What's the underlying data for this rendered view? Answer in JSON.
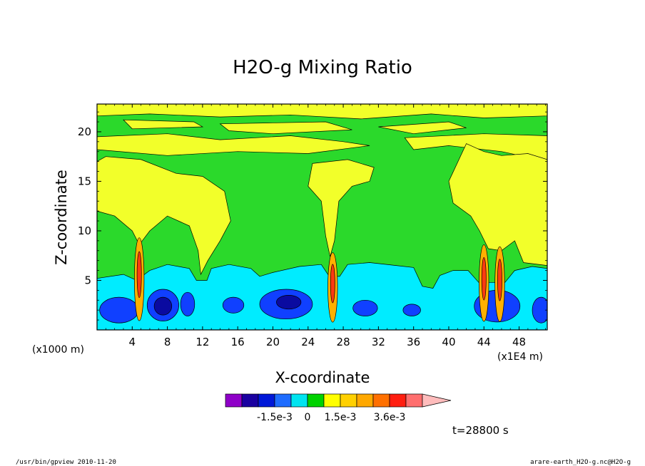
{
  "chart_data": {
    "type": "heatmap",
    "title": "H2O-g Mixing Ratio",
    "xlabel": "X-coordinate",
    "ylabel": "Z-coordinate",
    "x_unit_left": "(x1000 m)",
    "x_unit_right": "(x1E4 m)",
    "x_ticks": [
      "4",
      "8",
      "12",
      "16",
      "20",
      "24",
      "28",
      "32",
      "36",
      "40",
      "44",
      "48"
    ],
    "y_ticks": [
      "5",
      "10",
      "15",
      "20"
    ],
    "xlim": [
      0,
      51.2
    ],
    "ylim": [
      0,
      22.8
    ],
    "time_label": "t=28800 s",
    "colorbar": {
      "labels": [
        "-1.5e-3",
        "0",
        "1.5e-3",
        "3.6e-3"
      ],
      "colors": [
        "#8f00c8",
        "#1a00a0",
        "#0018d8",
        "#1e6cff",
        "#00e4f0",
        "#00d200",
        "#ffff00",
        "#ffd000",
        "#ffa800",
        "#ff7000",
        "#ff1e10",
        "#ff6e6e",
        "#ffbcbc"
      ]
    },
    "palette": {
      "deep": "#0a0aa0",
      "blue": "#1040ff",
      "cyan": "#00ecff",
      "green": "#2bd92b",
      "yellow": "#f2ff2a",
      "orange": "#ffb000",
      "red": "#ff3a10"
    }
  },
  "footer": {
    "left": "/usr/bin/gpview   2010-11-20",
    "right": "arare-earth_H2O-g.nc@H2O-g"
  }
}
